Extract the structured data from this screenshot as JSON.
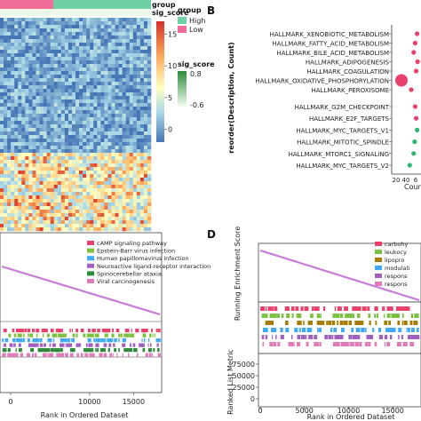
{
  "panel_labels": {
    "b": "B",
    "d": "D"
  },
  "colors": {
    "group_high": "#6fd0a6",
    "group_low": "#f06d9a",
    "sig_high": "#2e8b3a",
    "sig_low": "#f2fbf0",
    "heat_high": "#d73027",
    "heat_mid": "#ffffbf",
    "heat_low": "#4575b4",
    "dot": "#e8416a",
    "dot_green": "#2bb673",
    "curve": "#c77dd6"
  },
  "heatmap_legend": {
    "group_title": "group",
    "group_items": [
      "High",
      "Low"
    ],
    "sig_title": "sig_score",
    "sig_ticks": [
      "0.8",
      "-0.6"
    ],
    "top_strip_labels": [
      "group",
      "sig_score"
    ]
  },
  "chart_data": [
    {
      "type": "heatmap",
      "panel": "A",
      "colorbar_ticks": [
        15,
        10,
        5,
        0
      ],
      "note": "Expression heatmap with group (High/Low) and sig_score annotation strips"
    },
    {
      "type": "scatter",
      "panel": "B",
      "ylabel": "reorder(Description, Count)",
      "xlabel": "Coun",
      "x_ticks": [
        "20",
        "40",
        "6"
      ],
      "categories": [
        "HALLMARK_XENOBIOTIC_METABOLISM",
        "HALLMARK_FATTY_ACID_METABOLISM",
        "HALLMARK_BILE_ACID_METABOLISM",
        "HALLMARK_ADIPOGENESIS",
        "HALLMARK_COAGULATION",
        "HALLMARK_OXIDATIVE_PHOSPHORYLATION",
        "HALLMARK_PEROXISOME",
        "HALLMARK_G2M_CHECKPOINT",
        "HALLMARK_E2F_TARGETS",
        "HALLMARK_MYC_TARGETS_V1",
        "HALLMARK_MITOTIC_SPINDLE",
        "HALLMARK_MTORC1_SIGNALING",
        "HALLMARK_MYC_TARGETS_V2"
      ],
      "counts": [
        62,
        58,
        55,
        63,
        60,
        30,
        50,
        58,
        60,
        62,
        57,
        55,
        47
      ]
    },
    {
      "type": "line",
      "panel": "C",
      "xlabel": "Rank in Ordered Dataset",
      "x_ticks": [
        0,
        10000,
        15000
      ],
      "xlim": [
        0,
        18000
      ],
      "legend": [
        "cAMP signaling pathway",
        "Epstein-Barr virus infection",
        "Human papillomavirus infection",
        "Neuroactive ligand-receptor interaction",
        "Spinocerebellar ataxia",
        "Viral carcinogenesis"
      ],
      "legend_colors": [
        "#e8416a",
        "#7cc242",
        "#3fa9f5",
        "#a060c0",
        "#2e8b3a",
        "#e07ab8"
      ]
    },
    {
      "type": "line",
      "panel": "D",
      "ylabel_top": "Running Enrichment Score",
      "ylabel_bottom": "Ranked List Metric",
      "xlabel": "Rank in Ordered Dataset",
      "x_ticks": [
        0,
        5000,
        10000,
        15000
      ],
      "xlim": [
        0,
        18000
      ],
      "y_ticks_bottom": [
        75000,
        50000,
        25000,
        0
      ],
      "legend": [
        "carbohy",
        "leukocy",
        "lipopro",
        "modulati",
        "respons",
        "respons"
      ],
      "legend_colors": [
        "#e8416a",
        "#7cc242",
        "#a67c00",
        "#3fa9f5",
        "#a060c0",
        "#e07ab8"
      ]
    }
  ]
}
